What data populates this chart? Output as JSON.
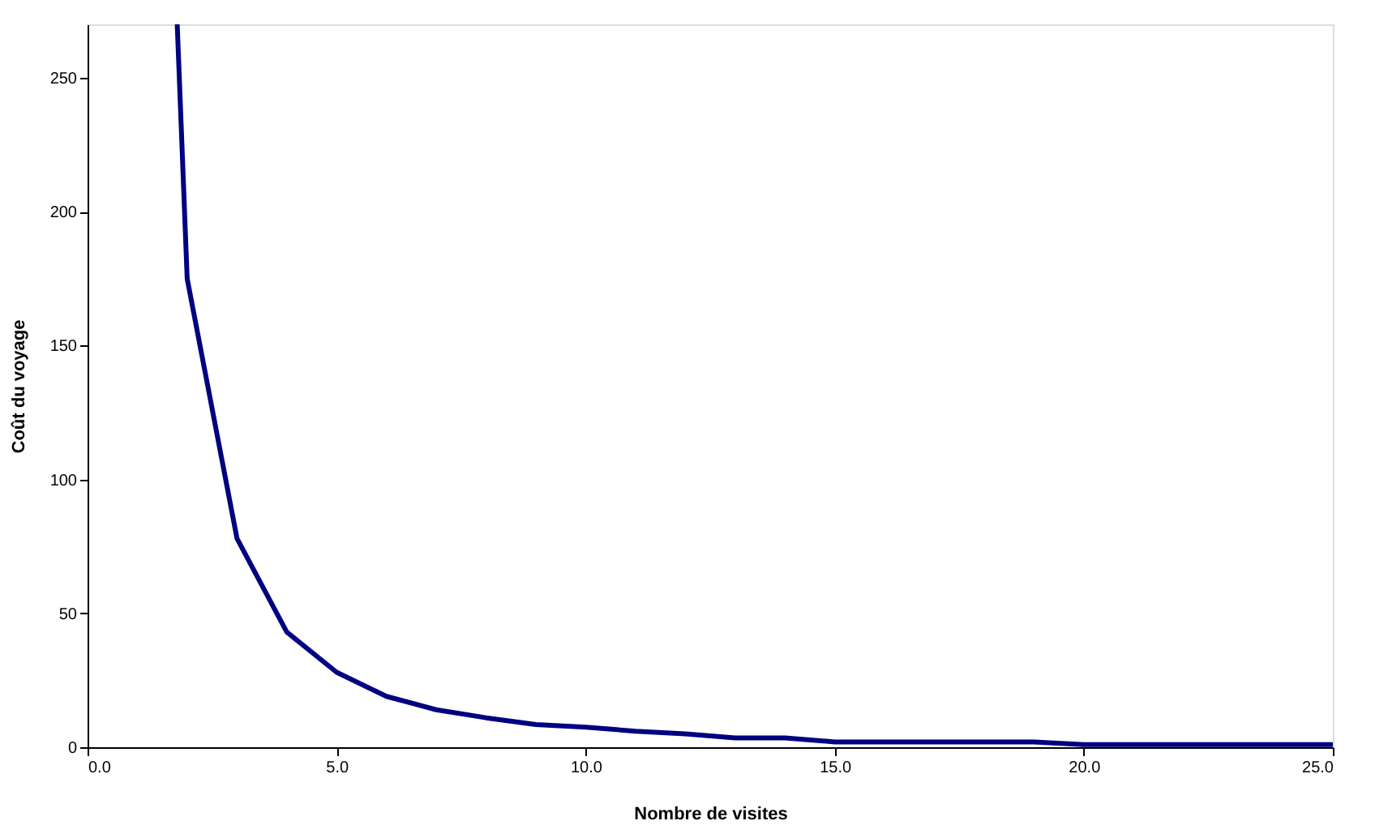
{
  "chart_data": {
    "type": "line",
    "xlabel": "Nombre de visites",
    "ylabel": "Coût du voyage",
    "x": [
      1.8,
      2,
      3,
      4,
      5,
      6,
      7,
      8,
      9,
      10,
      11,
      12,
      13,
      14,
      15,
      16,
      17,
      18,
      19,
      20,
      21,
      22,
      23,
      24,
      25
    ],
    "series": [
      {
        "color": "#000080",
        "values": [
          270,
          175,
          78,
          43,
          28,
          19,
          14,
          11,
          8.5,
          7.5,
          6,
          5,
          3.5,
          3.5,
          2,
          2,
          2,
          2,
          2,
          1,
          1,
          1,
          1,
          1,
          1
        ]
      }
    ],
    "xlim": [
      0,
      25
    ],
    "xticks": [
      {
        "value": 0,
        "label": "0.0"
      },
      {
        "value": 5,
        "label": "5.0"
      },
      {
        "value": 10,
        "label": "10.0"
      },
      {
        "value": 15,
        "label": "15.0"
      },
      {
        "value": 20,
        "label": "20.0"
      },
      {
        "value": 25,
        "label": "25.0"
      }
    ],
    "ylim": [
      0,
      270
    ],
    "yticks": [
      0,
      50,
      100,
      150,
      200,
      250
    ],
    "grid": false,
    "marker": "none",
    "line_style": "solid"
  }
}
